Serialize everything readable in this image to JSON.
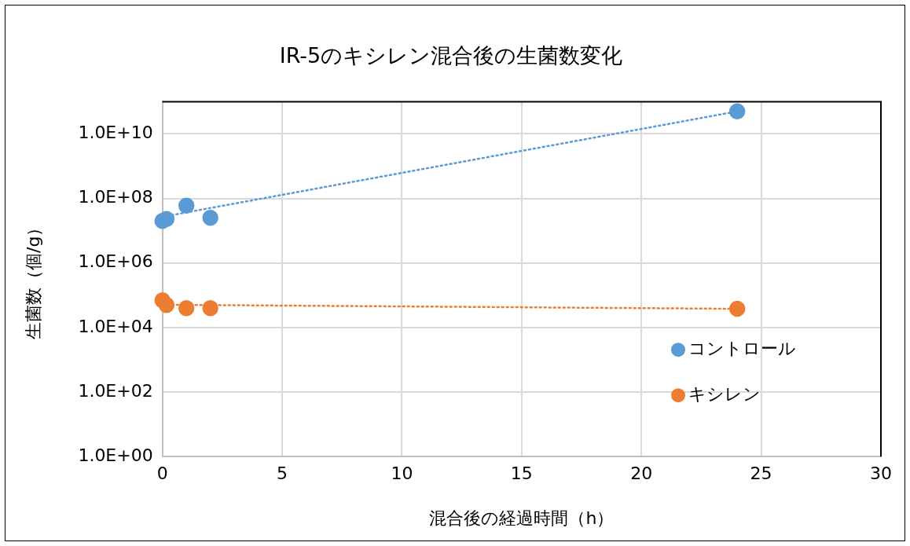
{
  "chart_data": {
    "type": "scatter",
    "title": "IR-5のキシレン混合後の生菌数変化",
    "xlabel": "混合後の経過時間（h）",
    "ylabel": "生菌数（個/g）",
    "series": [
      {
        "name": "コントロール",
        "color": "#5b9bd5",
        "x": [
          0,
          0.17,
          1,
          2,
          24
        ],
        "values": [
          20000000,
          23000000,
          60000000,
          25000000,
          50000000000
        ]
      },
      {
        "name": "キシレン",
        "color": "#ed7d31",
        "x": [
          0,
          0.17,
          1,
          2,
          24
        ],
        "values": [
          70000,
          50000,
          40000,
          40000,
          38000
        ]
      },
      {
        "type": "line",
        "color": "#5b9bd5",
        "x": [
          0,
          24
        ],
        "values": [
          27000000,
          50000000000
        ],
        "marker": "none",
        "line_style": "dotted"
      },
      {
        "type": "line",
        "color": "#ed7d31",
        "x": [
          0,
          24
        ],
        "values": [
          51000,
          38000
        ],
        "marker": "none",
        "line_style": "dotted"
      }
    ],
    "log": "y",
    "xlim": [
      0,
      30
    ],
    "xticks": [
      0,
      5,
      10,
      15,
      20,
      25,
      30
    ],
    "ylim": [
      1,
      100000000000
    ],
    "yticks": [
      {
        "value": 1,
        "label": "1.0E+00"
      },
      {
        "value": 100,
        "label": "1.0E+02"
      },
      {
        "value": 10000,
        "label": "1.0E+04"
      },
      {
        "value": 1000000,
        "label": "1.0E+06"
      },
      {
        "value": 100000000,
        "label": "1.0E+08"
      },
      {
        "value": 10000000000,
        "label": "1.0E+10"
      }
    ],
    "grid": true,
    "legend": "bottom right",
    "marker": "circle"
  }
}
